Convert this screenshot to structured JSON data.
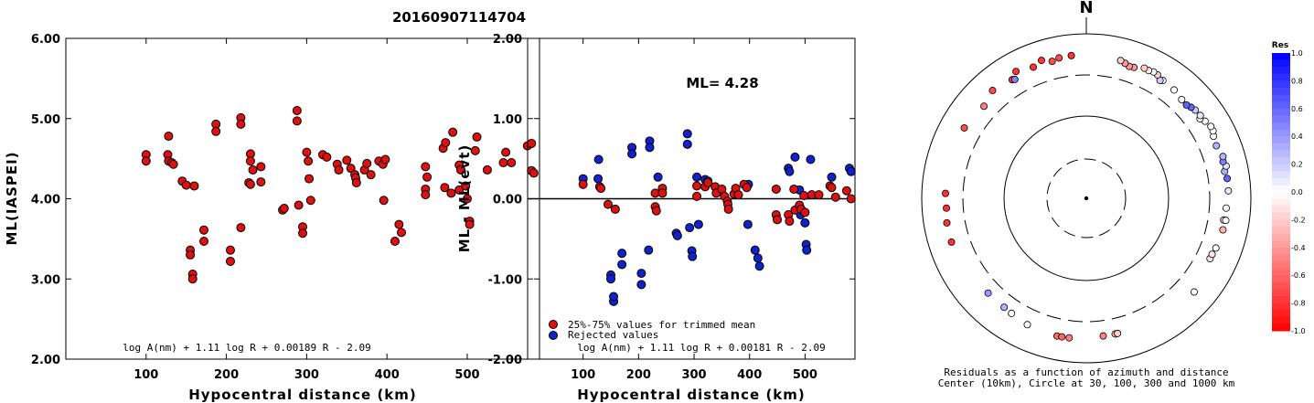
{
  "figure_title": "20160907114704",
  "colors": {
    "accepted": "#dd1111",
    "rejected": "#1122cc",
    "outline": "#000000"
  },
  "chart_data": [
    {
      "type": "scatter",
      "panel": "left",
      "xlabel": "Hypocentral distance (km)",
      "ylabel": "ML(IASPEI)",
      "xlim": [
        0,
        590
      ],
      "ylim": [
        2.0,
        6.0
      ],
      "x_ticks": [
        "100",
        "200",
        "300",
        "400",
        "500"
      ],
      "x_tick_values": [
        100,
        200,
        300,
        400,
        500
      ],
      "y_ticks": [
        "2.00",
        "3.00",
        "4.00",
        "5.00",
        "6.00"
      ],
      "y_tick_values": [
        2,
        3,
        4,
        5,
        6
      ],
      "formula": "log A(nm) + 1.11 log R + 0.00189 R - 2.09",
      "points": [
        [
          100,
          4.55
        ],
        [
          100,
          4.47
        ],
        [
          128,
          4.78
        ],
        [
          127,
          4.55
        ],
        [
          128,
          4.47
        ],
        [
          132,
          4.45
        ],
        [
          134,
          4.43
        ],
        [
          145,
          4.22
        ],
        [
          150,
          4.17
        ],
        [
          155,
          3.36
        ],
        [
          155,
          3.3
        ],
        [
          158,
          3.06
        ],
        [
          158,
          3.0
        ],
        [
          160,
          4.16
        ],
        [
          172,
          3.61
        ],
        [
          172,
          3.47
        ],
        [
          187,
          4.93
        ],
        [
          187,
          4.84
        ],
        [
          205,
          3.36
        ],
        [
          205,
          3.22
        ],
        [
          218,
          3.64
        ],
        [
          218,
          5.01
        ],
        [
          218,
          4.93
        ],
        [
          230,
          4.56
        ],
        [
          230,
          4.47
        ],
        [
          233,
          4.36
        ],
        [
          228,
          4.2
        ],
        [
          230,
          4.18
        ],
        [
          243,
          4.4
        ],
        [
          243,
          4.21
        ],
        [
          270,
          3.86
        ],
        [
          272,
          3.88
        ],
        [
          288,
          5.1
        ],
        [
          288,
          4.97
        ],
        [
          290,
          3.92
        ],
        [
          295,
          3.65
        ],
        [
          295,
          3.57
        ],
        [
          300,
          4.58
        ],
        [
          302,
          4.47
        ],
        [
          305,
          3.98
        ],
        [
          303,
          4.25
        ],
        [
          320,
          4.55
        ],
        [
          325,
          4.52
        ],
        [
          338,
          4.43
        ],
        [
          340,
          4.36
        ],
        [
          350,
          4.48
        ],
        [
          355,
          4.38
        ],
        [
          360,
          4.3
        ],
        [
          361,
          4.26
        ],
        [
          362,
          4.2
        ],
        [
          372,
          4.36
        ],
        [
          375,
          4.44
        ],
        [
          380,
          4.3
        ],
        [
          390,
          4.47
        ],
        [
          395,
          4.43
        ],
        [
          396,
          3.98
        ],
        [
          398,
          4.49
        ],
        [
          410,
          3.47
        ],
        [
          415,
          3.68
        ],
        [
          418,
          3.58
        ],
        [
          448,
          4.12
        ],
        [
          448,
          4.05
        ],
        [
          448,
          4.4
        ],
        [
          450,
          4.27
        ],
        [
          470,
          4.63
        ],
        [
          473,
          4.7
        ],
        [
          472,
          4.14
        ],
        [
          480,
          4.07
        ],
        [
          482,
          4.83
        ],
        [
          490,
          4.11
        ],
        [
          490,
          4.42
        ],
        [
          492,
          4.36
        ],
        [
          498,
          4.16
        ],
        [
          500,
          4.0
        ],
        [
          503,
          3.72
        ],
        [
          503,
          3.68
        ],
        [
          510,
          4.6
        ],
        [
          512,
          4.77
        ],
        [
          525,
          4.36
        ],
        [
          545,
          4.45
        ],
        [
          548,
          4.58
        ],
        [
          555,
          4.45
        ],
        [
          575,
          4.66
        ],
        [
          580,
          4.69
        ],
        [
          580,
          4.35
        ],
        [
          583,
          4.32
        ]
      ]
    },
    {
      "type": "scatter",
      "panel": "middle",
      "xlabel": "Hypocentral distance (km)",
      "ylabel": "ML - ML(evt)",
      "xlim": [
        0,
        590
      ],
      "ylim": [
        -2.0,
        2.0
      ],
      "x_ticks": [
        "100",
        "200",
        "300",
        "400",
        "500"
      ],
      "x_tick_values": [
        100,
        200,
        300,
        400,
        500
      ],
      "y_ticks": [
        "-2.00",
        "-1.00",
        "0.00",
        "1.00",
        "2.00"
      ],
      "y_tick_values": [
        -2,
        -1,
        0,
        1,
        2
      ],
      "annotation": "ML= 4.28",
      "formula": "log A(nm) + 1.11 log R + 0.00181 R - 2.09",
      "legend": [
        {
          "label": "25%-75% values for trimmed mean",
          "series": "accepted"
        },
        {
          "label": "Rejected values",
          "series": "rejected"
        }
      ],
      "rejected": [
        [
          100,
          0.25
        ],
        [
          128,
          0.49
        ],
        [
          127,
          0.25
        ],
        [
          150,
          -0.95
        ],
        [
          150,
          -1.0
        ],
        [
          155,
          -1.28
        ],
        [
          155,
          -1.22
        ],
        [
          170,
          -0.68
        ],
        [
          170,
          -0.82
        ],
        [
          188,
          0.64
        ],
        [
          188,
          0.56
        ],
        [
          205,
          -0.93
        ],
        [
          205,
          -1.07
        ],
        [
          218,
          -0.64
        ],
        [
          220,
          0.72
        ],
        [
          220,
          0.64
        ],
        [
          235,
          0.27
        ],
        [
          268,
          -0.43
        ],
        [
          270,
          -0.46
        ],
        [
          288,
          0.81
        ],
        [
          288,
          0.68
        ],
        [
          292,
          -0.36
        ],
        [
          296,
          -0.65
        ],
        [
          297,
          -0.72
        ],
        [
          305,
          0.27
        ],
        [
          308,
          -0.32
        ],
        [
          320,
          0.24
        ],
        [
          325,
          0.22
        ],
        [
          398,
          0.18
        ],
        [
          397,
          -0.32
        ],
        [
          410,
          -0.64
        ],
        [
          415,
          -0.74
        ],
        [
          418,
          -0.84
        ],
        [
          470,
          0.38
        ],
        [
          472,
          0.34
        ],
        [
          482,
          0.52
        ],
        [
          490,
          0.11
        ],
        [
          492,
          -0.2
        ],
        [
          500,
          -0.3
        ],
        [
          502,
          -0.57
        ],
        [
          503,
          -0.64
        ],
        [
          510,
          0.49
        ],
        [
          548,
          0.27
        ],
        [
          580,
          0.38
        ],
        [
          583,
          0.34
        ]
      ],
      "accepted": [
        [
          100,
          0.18
        ],
        [
          130,
          0.15
        ],
        [
          132,
          0.13
        ],
        [
          145,
          -0.07
        ],
        [
          158,
          -0.13
        ],
        [
          230,
          0.07
        ],
        [
          230,
          -0.1
        ],
        [
          232,
          -0.15
        ],
        [
          243,
          0.13
        ],
        [
          243,
          0.07
        ],
        [
          305,
          0.03
        ],
        [
          305,
          0.16
        ],
        [
          320,
          0.15
        ],
        [
          325,
          0.2
        ],
        [
          338,
          0.15
        ],
        [
          340,
          0.07
        ],
        [
          350,
          0.12
        ],
        [
          355,
          0.03
        ],
        [
          360,
          -0.03
        ],
        [
          361,
          -0.07
        ],
        [
          362,
          -0.13
        ],
        [
          372,
          0.06
        ],
        [
          375,
          0.13
        ],
        [
          380,
          0.05
        ],
        [
          390,
          0.18
        ],
        [
          395,
          0.14
        ],
        [
          448,
          0.12
        ],
        [
          448,
          -0.2
        ],
        [
          450,
          -0.26
        ],
        [
          470,
          -0.2
        ],
        [
          472,
          -0.28
        ],
        [
          480,
          0.12
        ],
        [
          482,
          -0.14
        ],
        [
          490,
          -0.08
        ],
        [
          493,
          -0.13
        ],
        [
          498,
          0.04
        ],
        [
          500,
          -0.17
        ],
        [
          512,
          0.05
        ],
        [
          525,
          0.05
        ],
        [
          545,
          0.16
        ],
        [
          548,
          0.14
        ],
        [
          555,
          0.02
        ],
        [
          575,
          0.1
        ],
        [
          583,
          0.0
        ]
      ]
    },
    {
      "type": "scatter",
      "panel": "right-polar",
      "north_label": "N",
      "caption_line1": "Residuals as a function of azimuth and distance",
      "caption_line2": "Center (10km), Circle at 30, 100, 300 and 1000 km",
      "colorbar_title": "Res",
      "colorbar_ticks": [
        "1.0",
        "0.8",
        "0.6",
        "0.4",
        "0.2",
        "0.0",
        "-0.2",
        "-0.4",
        "-0.6",
        "-0.8",
        "-1.0"
      ],
      "colorbar_tick_values": [
        1.0,
        0.8,
        0.6,
        0.4,
        0.2,
        0.0,
        -0.2,
        -0.4,
        -0.6,
        -0.8,
        -1.0
      ],
      "rings_km": [
        10,
        30,
        100,
        300,
        1000
      ],
      "stations": [
        [
          -11,
          533,
          -0.7
        ],
        [
          -18,
          565,
          -0.8
        ],
        [
          -22,
          510,
          -0.8
        ],
        [
          -29,
          565,
          -0.8
        ],
        [
          -32,
          485,
          -0.8
        ],
        [
          -41,
          530,
          -0.7
        ],
        [
          -48,
          455,
          -0.5
        ],
        [
          -60,
          500,
          -0.7
        ],
        [
          -88,
          500,
          -0.8
        ],
        [
          -94,
          490,
          -0.8
        ],
        [
          -100,
          510,
          -0.8
        ],
        [
          -108,
          513,
          -0.8
        ],
        [
          -134,
          440,
          0.4
        ],
        [
          -143,
          440,
          0.3
        ],
        [
          -147,
          450,
          0.0
        ],
        [
          -155,
          480,
          0.0
        ],
        [
          -168,
          500,
          -0.6
        ],
        [
          -170,
          498,
          -0.6
        ],
        [
          -173,
          497,
          -0.5
        ],
        [
          173,
          470,
          -0.5
        ],
        [
          168,
          470,
          -0.3
        ],
        [
          167,
          470,
          -0.2
        ],
        [
          131,
          530,
          0.0
        ],
        [
          116,
          455,
          -0.1
        ],
        [
          114,
          455,
          -0.1
        ],
        [
          111,
          470,
          0.0
        ],
        [
          103,
          490,
          -0.3
        ],
        [
          99,
          475,
          -0.2
        ],
        [
          94,
          490,
          0.0
        ],
        [
          87,
          520,
          0.1
        ],
        [
          82,
          520,
          0.6
        ],
        [
          79,
          500,
          0.3
        ],
        [
          77,
          540,
          0.1
        ],
        [
          75,
          510,
          0.5
        ],
        [
          73,
          530,
          0.3
        ],
        [
          68,
          490,
          0.3
        ],
        [
          64,
          510,
          0.0
        ],
        [
          62,
          540,
          0.0
        ],
        [
          60,
          545,
          0.0
        ],
        [
          57,
          510,
          0.0
        ],
        [
          55,
          470,
          0.0
        ],
        [
          54,
          500,
          0.1
        ],
        [
          51,
          490,
          0.2
        ],
        [
          49,
          470,
          0.6
        ],
        [
          47,
          445,
          0.6
        ],
        [
          44,
          450,
          0.0
        ],
        [
          39,
          480,
          0.0
        ],
        [
          33,
          495,
          0.0
        ],
        [
          32,
          475,
          0.2
        ],
        [
          30,
          525,
          -0.2
        ],
        [
          28,
          535,
          0.0
        ],
        [
          26,
          520,
          -0.1
        ],
        [
          24,
          525,
          -0.2
        ],
        [
          20,
          478,
          -0.4
        ],
        [
          18,
          470,
          -0.4
        ],
        [
          16,
          495,
          -0.4
        ],
        [
          14,
          517,
          -0.2
        ],
        [
          -6,
          540,
          -0.8
        ],
        [
          -14,
          505,
          -0.7
        ],
        [
          -31,
          470,
          0.5
        ],
        [
          99,
          505,
          0.0
        ]
      ]
    }
  ]
}
